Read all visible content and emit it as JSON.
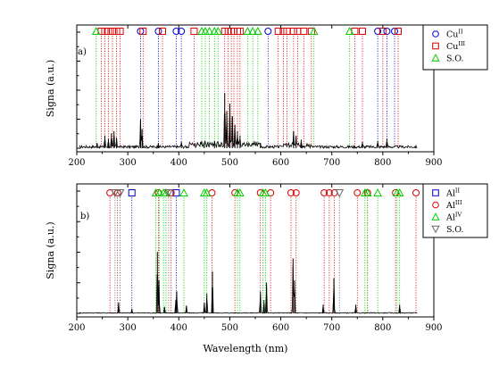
{
  "figure": {
    "xlabel": "Wavelength (nm)"
  },
  "chart_data": [
    {
      "type": "line",
      "panel_label": "a)",
      "ylabel": "Signa (a.u.)",
      "xlim": [
        200,
        900
      ],
      "xticks": [
        200,
        300,
        400,
        500,
        600,
        700,
        800,
        900
      ],
      "xticklabels": [
        "200",
        "300",
        "400",
        "500",
        "600",
        "700",
        "800",
        "900"
      ],
      "ylim": [
        0,
        1
      ],
      "grid": false,
      "legend": {
        "placement": "top-right",
        "entries": [
          {
            "marker": "circle",
            "color": "#0000cc",
            "base": "Cu",
            "sup": "II"
          },
          {
            "marker": "square",
            "color": "#dd0000",
            "base": "Cu",
            "sup": "III"
          },
          {
            "marker": "triangle-up",
            "color": "#00cc00",
            "base": "S.O.",
            "sup": ""
          }
        ]
      },
      "line_groups": [
        {
          "marker": "circle",
          "color": "#0000cc",
          "x": [
            325,
            360,
            395,
            405,
            575,
            790,
            808,
            823
          ]
        },
        {
          "marker": "square",
          "color": "#dd0000",
          "x": [
            248,
            255,
            262,
            270,
            278,
            285,
            330,
            368,
            430,
            490,
            497,
            503,
            508,
            515,
            520,
            595,
            605,
            612,
            625,
            633,
            645,
            660,
            745,
            760,
            800,
            830
          ]
        },
        {
          "marker": "triangle-up",
          "color": "#00cc00",
          "x": [
            238,
            445,
            452,
            460,
            470,
            477,
            535,
            545,
            555,
            665,
            735
          ]
        }
      ],
      "spectrum_peaks": [
        {
          "x": 240,
          "y": 0.05
        },
        {
          "x": 255,
          "y": 0.12
        },
        {
          "x": 262,
          "y": 0.09
        },
        {
          "x": 268,
          "y": 0.14
        },
        {
          "x": 273,
          "y": 0.16
        },
        {
          "x": 278,
          "y": 0.1
        },
        {
          "x": 325,
          "y": 0.27
        },
        {
          "x": 328,
          "y": 0.18
        },
        {
          "x": 360,
          "y": 0.05
        },
        {
          "x": 405,
          "y": 0.06
        },
        {
          "x": 450,
          "y": 0.05
        },
        {
          "x": 470,
          "y": 0.07
        },
        {
          "x": 490,
          "y": 0.52
        },
        {
          "x": 494,
          "y": 0.35
        },
        {
          "x": 500,
          "y": 0.42
        },
        {
          "x": 505,
          "y": 0.3
        },
        {
          "x": 510,
          "y": 0.22
        },
        {
          "x": 515,
          "y": 0.16
        },
        {
          "x": 520,
          "y": 0.12
        },
        {
          "x": 560,
          "y": 0.05
        },
        {
          "x": 625,
          "y": 0.16
        },
        {
          "x": 630,
          "y": 0.12
        },
        {
          "x": 640,
          "y": 0.08
        },
        {
          "x": 760,
          "y": 0.06
        },
        {
          "x": 790,
          "y": 0.07
        },
        {
          "x": 808,
          "y": 0.09
        }
      ]
    },
    {
      "type": "line",
      "panel_label": "b)",
      "ylabel": "Signa (a.u.)",
      "xlim": [
        200,
        900
      ],
      "xticks": [
        200,
        300,
        400,
        500,
        600,
        700,
        800,
        900
      ],
      "xticklabels": [
        "200",
        "300",
        "400",
        "500",
        "600",
        "700",
        "800",
        "900"
      ],
      "ylim": [
        0,
        1
      ],
      "grid": false,
      "legend": {
        "placement": "top-right",
        "entries": [
          {
            "marker": "square",
            "color": "#0000cc",
            "base": "Al",
            "sup": "II"
          },
          {
            "marker": "circle",
            "color": "#dd0000",
            "base": "Al",
            "sup": "III"
          },
          {
            "marker": "triangle-up",
            "color": "#00cc00",
            "base": "Al",
            "sup": "IV"
          },
          {
            "marker": "triangle-down",
            "color": "#666666",
            "base": "S.O.",
            "sup": ""
          }
        ]
      },
      "line_groups": [
        {
          "marker": "square",
          "color": "#0000cc",
          "x": [
            308,
            395
          ]
        },
        {
          "marker": "circle",
          "color": "#dd0000",
          "x": [
            265,
            280,
            360,
            385,
            465,
            510,
            560,
            580,
            620,
            630,
            685,
            695,
            705,
            750,
            770,
            825,
            865
          ]
        },
        {
          "marker": "triangle-up",
          "color": "#00cc00",
          "x": [
            355,
            362,
            370,
            375,
            410,
            450,
            455,
            515,
            520,
            565,
            570,
            765,
            770,
            790,
            828,
            833
          ]
        },
        {
          "marker": "triangle-down",
          "color": "#666666",
          "x": [
            275,
            285,
            380,
            715
          ]
        }
      ],
      "spectrum_peaks": [
        {
          "x": 282,
          "y": 0.1
        },
        {
          "x": 308,
          "y": 0.04
        },
        {
          "x": 358,
          "y": 0.56
        },
        {
          "x": 361,
          "y": 0.3
        },
        {
          "x": 372,
          "y": 0.06
        },
        {
          "x": 394,
          "y": 0.12
        },
        {
          "x": 396,
          "y": 0.2
        },
        {
          "x": 415,
          "y": 0.07
        },
        {
          "x": 450,
          "y": 0.1
        },
        {
          "x": 455,
          "y": 0.18
        },
        {
          "x": 466,
          "y": 0.38
        },
        {
          "x": 560,
          "y": 0.2
        },
        {
          "x": 567,
          "y": 0.12
        },
        {
          "x": 572,
          "y": 0.28
        },
        {
          "x": 624,
          "y": 0.5
        },
        {
          "x": 627,
          "y": 0.3
        },
        {
          "x": 683,
          "y": 0.08
        },
        {
          "x": 704,
          "y": 0.32
        },
        {
          "x": 747,
          "y": 0.08
        },
        {
          "x": 833,
          "y": 0.08
        }
      ]
    }
  ]
}
